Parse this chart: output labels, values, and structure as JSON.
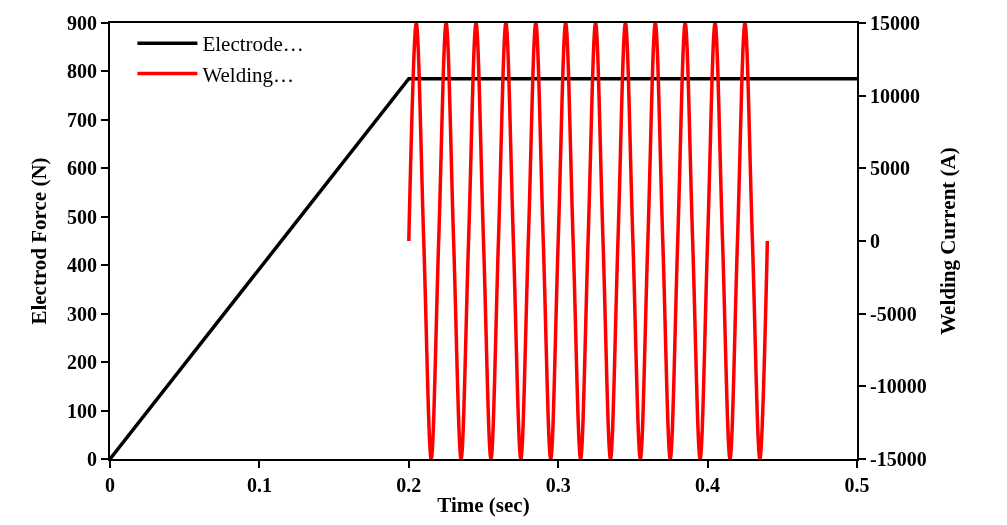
{
  "chart_data": {
    "type": "line",
    "xlabel": "Time (sec)",
    "ylabel": "Electrod Force (N)",
    "y2label": "Welding Current (A)",
    "xlim": [
      0,
      0.5
    ],
    "xticks": [
      0,
      0.1,
      0.2,
      0.3,
      0.4,
      0.5
    ],
    "ylim": [
      0,
      900
    ],
    "yticks": [
      0,
      100,
      200,
      300,
      400,
      500,
      600,
      700,
      800,
      900
    ],
    "y2lim": [
      -15000,
      15000
    ],
    "y2ticks": [
      -15000,
      -10000,
      -5000,
      0,
      5000,
      10000,
      15000
    ],
    "legend": "top left",
    "marker": "none",
    "line_style": "solid",
    "series": [
      {
        "name": "Electrode…",
        "color": "#000000",
        "x": [
          0,
          0.2,
          0.5
        ],
        "values": [
          0,
          785,
          785
        ]
      },
      {
        "name": "Welding…",
        "color": "#ff0000",
        "axis": "y2",
        "x": [
          0.2,
          0.205,
          0.21,
          0.215,
          0.22,
          0.225,
          0.23,
          0.235,
          0.24,
          0.245,
          0.25,
          0.255,
          0.26,
          0.265,
          0.27,
          0.275,
          0.28,
          0.285,
          0.29,
          0.295,
          0.3,
          0.305,
          0.31,
          0.315,
          0.32,
          0.325,
          0.33,
          0.335,
          0.34,
          0.345,
          0.35,
          0.355,
          0.36,
          0.365,
          0.37,
          0.375,
          0.38,
          0.385,
          0.39,
          0.395,
          0.4,
          0.405,
          0.41,
          0.415,
          0.42,
          0.425,
          0.43,
          0.435,
          0.44
        ],
        "values": [
          0,
          15000,
          0,
          -15000,
          0,
          15000,
          0,
          -15000,
          0,
          15000,
          0,
          -15000,
          0,
          15000,
          0,
          -15000,
          0,
          15000,
          0,
          -15000,
          0,
          15000,
          0,
          -15000,
          0,
          15000,
          0,
          -15000,
          0,
          15000,
          0,
          -15000,
          0,
          15000,
          0,
          -15000,
          0,
          15000,
          0,
          -15000,
          0,
          15000,
          0,
          -15000,
          0,
          15000,
          0,
          -15000,
          0
        ]
      }
    ]
  }
}
